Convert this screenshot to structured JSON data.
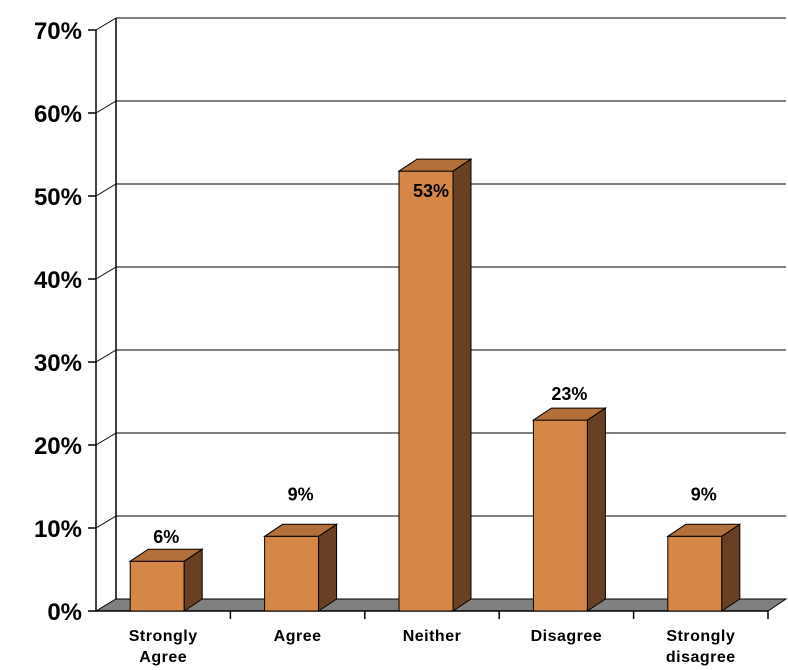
{
  "chart_data": {
    "type": "bar",
    "categories": [
      [
        "Strongly",
        "Agree"
      ],
      [
        "Agree"
      ],
      [
        "Neither"
      ],
      [
        "Disagree"
      ],
      [
        "Strongly",
        "disagree"
      ]
    ],
    "values": [
      6,
      9,
      53,
      23,
      9
    ],
    "value_labels": [
      "6%",
      "9%",
      "53%",
      "23%",
      "9%"
    ],
    "yticks": [
      "0%",
      "10%",
      "20%",
      "30%",
      "40%",
      "50%",
      "60%",
      "70%"
    ],
    "ylim": [
      0,
      70
    ],
    "grid": true,
    "legend": "none",
    "colors": {
      "bar_front": "#D58747",
      "bar_top": "#B3703A",
      "bar_side": "#6A4024",
      "floor": "#808080",
      "grid": "#000000"
    }
  }
}
